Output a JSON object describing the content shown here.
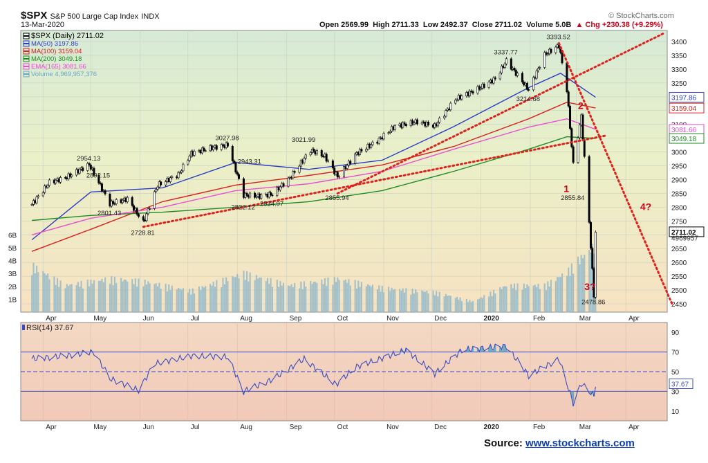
{
  "header": {
    "symbol": "$SPX",
    "name": "S&P 500 Large Cap Index",
    "exchange": "INDX",
    "date": "13-Mar-2020",
    "open": "Open 2569.99",
    "high": "High 2711.33",
    "low": "Low 2492.37",
    "close": "Close 2711.02",
    "volume": "Volume 5.0B",
    "change": "Chg +230.38 (+9.29%)",
    "change_arrow": "▲",
    "brand": "© StockCharts.com"
  },
  "source": {
    "label": "Source:",
    "url": "www.stockcharts.com"
  },
  "chart_data": [
    {
      "type": "line",
      "title": "$SPX (Daily) 2711.02",
      "x_labels": [
        "Apr",
        "May",
        "Jun",
        "Jul",
        "Aug",
        "Sep",
        "Oct",
        "Nov",
        "Dec",
        "2020",
        "Feb",
        "Mar",
        "Apr"
      ],
      "y_ticks": [
        2450,
        2500,
        2550,
        2600,
        2650,
        2700,
        2750,
        2800,
        2850,
        2900,
        2950,
        3000,
        3050,
        3100,
        3150,
        3200,
        3250,
        3300,
        3350,
        3400
      ],
      "ylim": [
        2420,
        3440
      ],
      "legend": [
        {
          "label": "$SPX (Daily) 2711.02",
          "color": "#000000"
        },
        {
          "label": "MA(50) 3197.86",
          "color": "#2b3cc4"
        },
        {
          "label": "MA(100) 3159.04",
          "color": "#d62020"
        },
        {
          "label": "MA(200) 3049.18",
          "color": "#1f8a24"
        },
        {
          "label": "EMA(165) 3081.66",
          "color": "#e64fd0"
        },
        {
          "label": "Volume 4,969,957,376",
          "color": "#6aa6c4"
        }
      ],
      "series": [
        {
          "name": "$SPX",
          "values": [
            {
              "x": "2019-03-25",
              "y": 2810
            },
            {
              "x": "2019-04-05",
              "y": 2890
            },
            {
              "x": "2019-04-15",
              "y": 2906
            },
            {
              "x": "2019-04-30",
              "y": 2954
            },
            {
              "x": "2019-05-13",
              "y": 2812
            },
            {
              "x": "2019-05-24",
              "y": 2830
            },
            {
              "x": "2019-06-03",
              "y": 2744
            },
            {
              "x": "2019-06-12",
              "y": 2880
            },
            {
              "x": "2019-06-25",
              "y": 2918
            },
            {
              "x": "2019-07-03",
              "y": 2995
            },
            {
              "x": "2019-07-15",
              "y": 3014
            },
            {
              "x": "2019-07-26",
              "y": 3025
            },
            {
              "x": "2019-08-05",
              "y": 2844
            },
            {
              "x": "2019-08-14",
              "y": 2840
            },
            {
              "x": "2019-08-23",
              "y": 2847
            },
            {
              "x": "2019-09-03",
              "y": 2906
            },
            {
              "x": "2019-09-16",
              "y": 3007
            },
            {
              "x": "2019-09-25",
              "y": 2984
            },
            {
              "x": "2019-10-03",
              "y": 2910
            },
            {
              "x": "2019-10-15",
              "y": 2995
            },
            {
              "x": "2019-10-28",
              "y": 3040
            },
            {
              "x": "2019-11-08",
              "y": 3093
            },
            {
              "x": "2019-11-22",
              "y": 3110
            },
            {
              "x": "2019-12-03",
              "y": 3093
            },
            {
              "x": "2019-12-16",
              "y": 3191
            },
            {
              "x": "2019-12-31",
              "y": 3231
            },
            {
              "x": "2020-01-10",
              "y": 3265
            },
            {
              "x": "2020-01-17",
              "y": 3330
            },
            {
              "x": "2020-01-31",
              "y": 3225
            },
            {
              "x": "2020-02-10",
              "y": 3352
            },
            {
              "x": "2020-02-19",
              "y": 3386
            },
            {
              "x": "2020-02-24",
              "y": 3225
            },
            {
              "x": "2020-02-28",
              "y": 2954
            },
            {
              "x": "2020-03-04",
              "y": 3130
            },
            {
              "x": "2020-03-09",
              "y": 2746
            },
            {
              "x": "2020-03-12",
              "y": 2480
            },
            {
              "x": "2020-03-13",
              "y": 2711
            }
          ]
        },
        {
          "name": "MA(50)",
          "values": [
            {
              "x": "2019-03-25",
              "y": 2682
            },
            {
              "x": "2019-05-01",
              "y": 2855
            },
            {
              "x": "2019-06-15",
              "y": 2870
            },
            {
              "x": "2019-07-31",
              "y": 2962
            },
            {
              "x": "2019-09-15",
              "y": 2937
            },
            {
              "x": "2019-10-31",
              "y": 2970
            },
            {
              "x": "2019-12-15",
              "y": 3092
            },
            {
              "x": "2020-01-31",
              "y": 3233
            },
            {
              "x": "2020-02-20",
              "y": 3285
            },
            {
              "x": "2020-03-13",
              "y": 3198
            }
          ]
        },
        {
          "name": "MA(100)",
          "values": [
            {
              "x": "2019-03-25",
              "y": 2640
            },
            {
              "x": "2019-05-01",
              "y": 2720
            },
            {
              "x": "2019-06-15",
              "y": 2820
            },
            {
              "x": "2019-07-31",
              "y": 2880
            },
            {
              "x": "2019-09-15",
              "y": 2915
            },
            {
              "x": "2019-10-31",
              "y": 2953
            },
            {
              "x": "2019-12-15",
              "y": 3020
            },
            {
              "x": "2020-01-31",
              "y": 3120
            },
            {
              "x": "2020-02-24",
              "y": 3180
            },
            {
              "x": "2020-03-13",
              "y": 3159
            }
          ]
        },
        {
          "name": "MA(200)",
          "values": [
            {
              "x": "2019-03-25",
              "y": 2752
            },
            {
              "x": "2019-05-01",
              "y": 2770
            },
            {
              "x": "2019-06-15",
              "y": 2782
            },
            {
              "x": "2019-07-31",
              "y": 2800
            },
            {
              "x": "2019-09-15",
              "y": 2820
            },
            {
              "x": "2019-10-31",
              "y": 2860
            },
            {
              "x": "2019-12-15",
              "y": 2930
            },
            {
              "x": "2020-01-31",
              "y": 3010
            },
            {
              "x": "2020-02-24",
              "y": 3055
            },
            {
              "x": "2020-03-13",
              "y": 3049
            }
          ]
        },
        {
          "name": "EMA(165)",
          "values": [
            {
              "x": "2019-03-25",
              "y": 2700
            },
            {
              "x": "2019-05-01",
              "y": 2760
            },
            {
              "x": "2019-06-15",
              "y": 2800
            },
            {
              "x": "2019-07-31",
              "y": 2860
            },
            {
              "x": "2019-09-15",
              "y": 2885
            },
            {
              "x": "2019-10-31",
              "y": 2930
            },
            {
              "x": "2019-12-15",
              "y": 3010
            },
            {
              "x": "2020-01-31",
              "y": 3090
            },
            {
              "x": "2020-02-24",
              "y": 3120
            },
            {
              "x": "2020-03-13",
              "y": 3082
            }
          ]
        }
      ],
      "price_labels": [
        {
          "text": "2954.13",
          "x": "2019-04-30",
          "y": 2954
        },
        {
          "text": "2892.15",
          "x": "2019-05-06",
          "y": 2892
        },
        {
          "text": "2801.43",
          "x": "2019-05-13",
          "y": 2801
        },
        {
          "text": "2728.81",
          "x": "2019-06-03",
          "y": 2729
        },
        {
          "text": "3027.98",
          "x": "2019-07-26",
          "y": 3028
        },
        {
          "text": "2943.31",
          "x": "2019-08-09",
          "y": 2943
        },
        {
          "text": "2822.12",
          "x": "2019-08-05",
          "y": 2822
        },
        {
          "text": "2834.97",
          "x": "2019-08-23",
          "y": 2835
        },
        {
          "text": "3021.99",
          "x": "2019-09-12",
          "y": 3022
        },
        {
          "text": "2855.94",
          "x": "2019-10-03",
          "y": 2856
        },
        {
          "text": "3337.77",
          "x": "2020-01-17",
          "y": 3338
        },
        {
          "text": "3214.68",
          "x": "2020-01-31",
          "y": 3215
        },
        {
          "text": "3393.52",
          "x": "2020-02-19",
          "y": 3394
        },
        {
          "text": "2855.84",
          "x": "2020-02-28",
          "y": 2856
        },
        {
          "text": "2478.86",
          "x": "2020-03-12",
          "y": 2479
        }
      ],
      "annotations": [
        {
          "text": "1",
          "color": "#d0021b"
        },
        {
          "text": "2",
          "color": "#d0021b"
        },
        {
          "text": "3?",
          "color": "#d0021b"
        },
        {
          "text": "4?",
          "color": "#d0021b"
        }
      ],
      "trendlines": [
        {
          "from": {
            "x": "2019-06-03",
            "y": 2729
          },
          "to": {
            "x": "2020-03-20",
            "y": 3060
          }
        },
        {
          "from": {
            "x": "2019-10-03",
            "y": 2850
          },
          "to": {
            "x": "2020-04-25",
            "y": 3430
          }
        },
        {
          "from": {
            "x": "2020-02-19",
            "y": 3394
          },
          "to": {
            "x": "2020-04-30",
            "y": 2450
          }
        }
      ],
      "right_value_labels": [
        {
          "text": "3197.86",
          "y": 3198,
          "color": "#2b3cc4"
        },
        {
          "text": "3159.04",
          "y": 3159,
          "color": "#d62020"
        },
        {
          "text": "3081.66",
          "y": 3082,
          "color": "#e64fd0"
        },
        {
          "text": "3049.18",
          "y": 3049,
          "color": "#1f8a24"
        },
        {
          "text": "2711.02",
          "y": 2711,
          "color": "#000000"
        },
        {
          "text": "4969957",
          "y": 2690,
          "color": "#333333"
        }
      ],
      "volume_axis": {
        "ticks": [
          "1B",
          "2B",
          "3B",
          "4B",
          "5B",
          "6B"
        ],
        "max": 6.5
      },
      "volume": [
        {
          "x": "2019-03-25",
          "v": 3.5
        },
        {
          "x": "2019-04-15",
          "v": 2.0
        },
        {
          "x": "2019-05-13",
          "v": 2.5
        },
        {
          "x": "2019-06-03",
          "v": 2.3
        },
        {
          "x": "2019-07-03",
          "v": 1.6
        },
        {
          "x": "2019-08-05",
          "v": 2.9
        },
        {
          "x": "2019-09-03",
          "v": 2.0
        },
        {
          "x": "2019-10-03",
          "v": 2.5
        },
        {
          "x": "2019-11-01",
          "v": 1.8
        },
        {
          "x": "2019-12-03",
          "v": 1.5
        },
        {
          "x": "2019-12-27",
          "v": 0.8
        },
        {
          "x": "2020-01-17",
          "v": 2.0
        },
        {
          "x": "2020-02-10",
          "v": 2.0
        },
        {
          "x": "2020-02-24",
          "v": 3.0
        },
        {
          "x": "2020-03-03",
          "v": 4.0
        },
        {
          "x": "2020-03-09",
          "v": 4.6
        },
        {
          "x": "2020-03-12",
          "v": 5.0
        },
        {
          "x": "2020-03-13",
          "v": 5.0
        }
      ]
    },
    {
      "type": "line",
      "title": "RSI(14) 37.67",
      "x_labels": [
        "Apr",
        "May",
        "Jun",
        "Jul",
        "Aug",
        "Sep",
        "Oct",
        "Nov",
        "Dec",
        "2020",
        "Feb",
        "Mar",
        "Apr"
      ],
      "y_ticks": [
        10,
        30,
        50,
        70,
        90
      ],
      "ylim": [
        0,
        100
      ],
      "reference_lines": [
        30,
        50,
        70
      ],
      "right_value_label": "37.67",
      "series": [
        {
          "name": "RSI(14)",
          "values": [
            {
              "x": "2019-03-25",
              "y": 63
            },
            {
              "x": "2019-04-15",
              "y": 66
            },
            {
              "x": "2019-05-03",
              "y": 70
            },
            {
              "x": "2019-05-13",
              "y": 43
            },
            {
              "x": "2019-05-31",
              "y": 31
            },
            {
              "x": "2019-06-10",
              "y": 58
            },
            {
              "x": "2019-07-03",
              "y": 66
            },
            {
              "x": "2019-07-26",
              "y": 65
            },
            {
              "x": "2019-08-05",
              "y": 30
            },
            {
              "x": "2019-08-23",
              "y": 42
            },
            {
              "x": "2019-09-12",
              "y": 63
            },
            {
              "x": "2019-10-02",
              "y": 37
            },
            {
              "x": "2019-10-15",
              "y": 55
            },
            {
              "x": "2019-11-15",
              "y": 72
            },
            {
              "x": "2019-12-03",
              "y": 48
            },
            {
              "x": "2019-12-20",
              "y": 72
            },
            {
              "x": "2020-01-17",
              "y": 76
            },
            {
              "x": "2020-01-31",
              "y": 46
            },
            {
              "x": "2020-02-19",
              "y": 63
            },
            {
              "x": "2020-02-28",
              "y": 18
            },
            {
              "x": "2020-03-04",
              "y": 38
            },
            {
              "x": "2020-03-12",
              "y": 25
            },
            {
              "x": "2020-03-13",
              "y": 37.67
            }
          ]
        }
      ]
    }
  ]
}
